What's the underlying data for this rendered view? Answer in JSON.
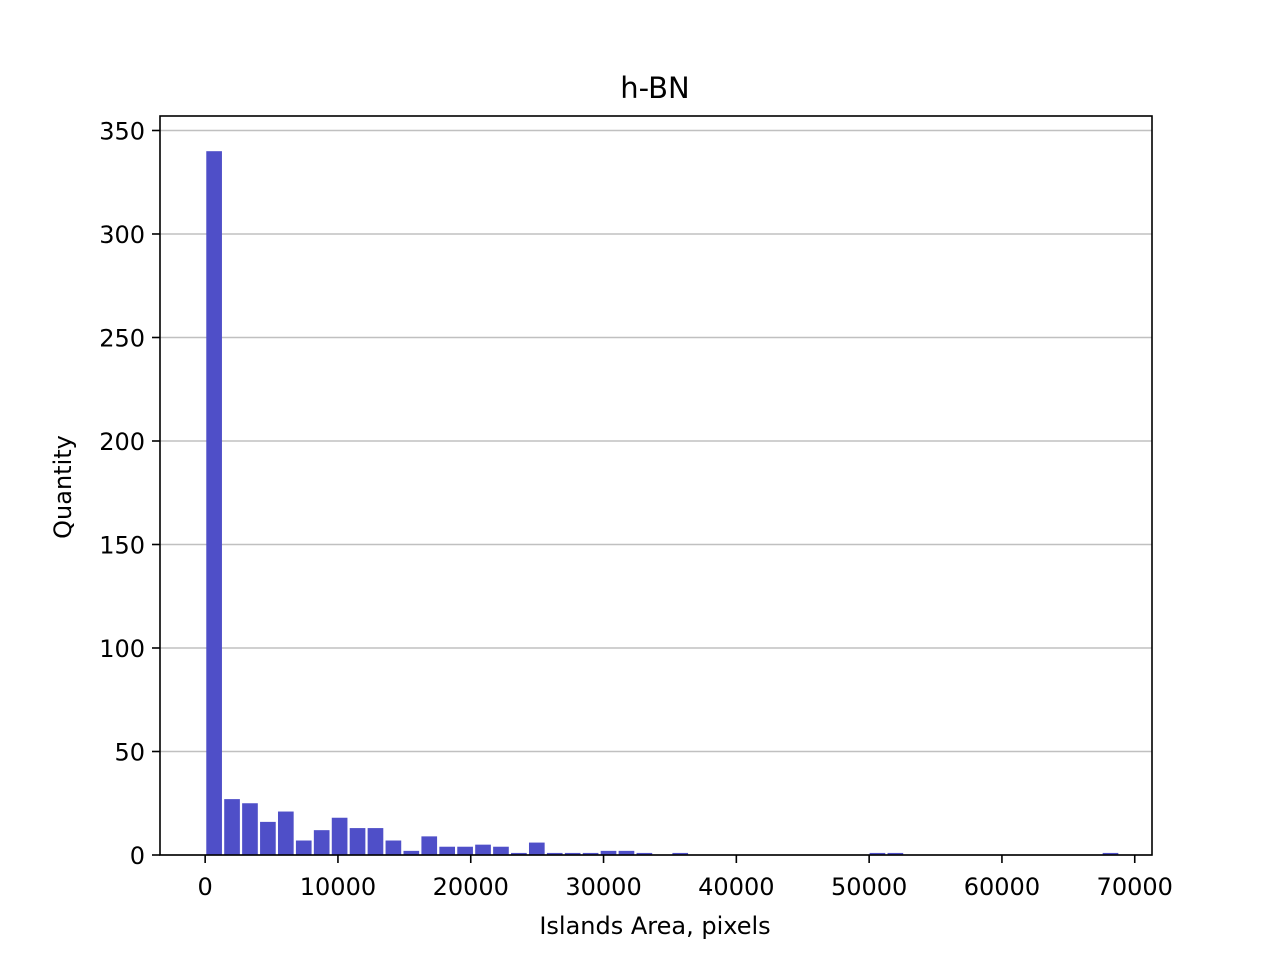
{
  "chart_data": {
    "type": "bar",
    "title": "h-BN",
    "xlabel": "Islands Area, pixels",
    "ylabel": "Quantity",
    "xlim": [
      -3400,
      71300
    ],
    "ylim": [
      0,
      357
    ],
    "bin_width": 1350,
    "bar_width": 1180,
    "x_ticks": [
      0,
      10000,
      20000,
      30000,
      40000,
      50000,
      60000,
      70000
    ],
    "y_ticks": [
      0,
      50,
      100,
      150,
      200,
      250,
      300,
      350
    ],
    "grid": "y",
    "bar_color": "#4f4fc8",
    "grid_color": "#c0c0c0",
    "x": [
      675,
      2025,
      3375,
      4725,
      6075,
      7425,
      8775,
      10125,
      11475,
      12825,
      14175,
      15525,
      16875,
      18225,
      19575,
      20925,
      22275,
      23625,
      24975,
      26325,
      27675,
      29025,
      30375,
      31725,
      33075,
      34425,
      35775,
      37125,
      38475,
      39825,
      41175,
      42525,
      43875,
      45225,
      46575,
      47925,
      49275,
      50625,
      51975,
      53325,
      54675,
      56025,
      57375,
      58725,
      60075,
      61425,
      62775,
      64125,
      65475,
      66825,
      68175
    ],
    "values": [
      340,
      27,
      25,
      16,
      21,
      7,
      12,
      18,
      13,
      13,
      7,
      2,
      9,
      4,
      4,
      5,
      4,
      1,
      6,
      1,
      1,
      1,
      2,
      2,
      1,
      0,
      1,
      0,
      0,
      0,
      0,
      0,
      0,
      0,
      0,
      0,
      0,
      1,
      1,
      0,
      0,
      0,
      0,
      0,
      0,
      0,
      0,
      0,
      0,
      0,
      1
    ]
  }
}
